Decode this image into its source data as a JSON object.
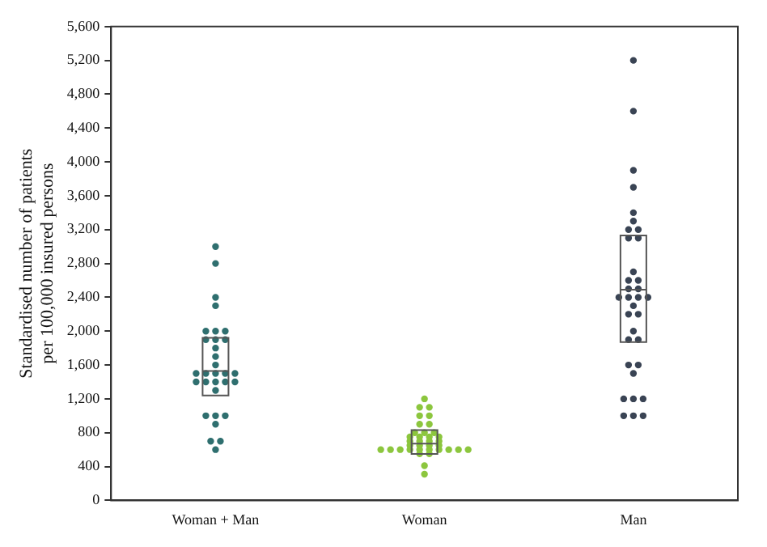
{
  "chart_data": {
    "type": "box",
    "ylabel": "Standardised number of patients per 100,000 insured persons",
    "categories": [
      "Woman + Man",
      "Woman",
      "Man"
    ],
    "color": "#555555",
    "boxes": [
      {
        "low": 1240,
        "q1": 1240,
        "median": 1530,
        "q3": 1920,
        "high": 1920
      },
      {
        "low": 550,
        "q1": 550,
        "median": 670,
        "q3": 830,
        "high": 830
      },
      {
        "low": 1870,
        "q1": 1870,
        "median": 2490,
        "q3": 3130,
        "high": 3130
      }
    ],
    "series": [
      {
        "type": "scatter",
        "color": "#2f6f6f",
        "x": [
          "Woman + Man",
          "Woman + Man",
          "Woman + Man",
          "Woman + Man",
          "Woman + Man",
          "Woman + Man",
          "Woman + Man",
          "Woman + Man",
          "Woman + Man",
          "Woman + Man",
          "Woman + Man",
          "Woman + Man",
          "Woman + Man",
          "Woman + Man",
          "Woman + Man",
          "Woman + Man",
          "Woman + Man",
          "Woman + Man",
          "Woman + Man",
          "Woman + Man",
          "Woman + Man",
          "Woman + Man",
          "Woman + Man",
          "Woman + Man",
          "Woman + Man",
          "Woman + Man",
          "Woman + Man",
          "Woman + Man",
          "Woman + Man",
          "Woman + Man",
          "Woman + Man"
        ],
        "values": [
          3000,
          2800,
          2400,
          2300,
          2000,
          2000,
          2000,
          1900,
          1900,
          1900,
          1800,
          1700,
          1600,
          1500,
          1500,
          1500,
          1500,
          1500,
          1400,
          1400,
          1400,
          1400,
          1400,
          1300,
          1000,
          1000,
          1000,
          900,
          700,
          700,
          600
        ]
      },
      {
        "type": "scatter",
        "color": "#8cc63e",
        "x": [
          "Woman",
          "Woman",
          "Woman",
          "Woman",
          "Woman",
          "Woman",
          "Woman",
          "Woman",
          "Woman",
          "Woman",
          "Woman",
          "Woman",
          "Woman",
          "Woman",
          "Woman",
          "Woman",
          "Woman",
          "Woman",
          "Woman",
          "Woman",
          "Woman",
          "Woman",
          "Woman",
          "Woman",
          "Woman",
          "Woman",
          "Woman",
          "Woman",
          "Woman",
          "Woman",
          "Woman",
          "Woman",
          "Woman",
          "Woman",
          "Woman",
          "Woman"
        ],
        "values": [
          1200,
          1100,
          1100,
          1000,
          1000,
          900,
          900,
          800,
          800,
          800,
          750,
          750,
          750,
          750,
          700,
          700,
          700,
          700,
          650,
          650,
          650,
          650,
          600,
          600,
          600,
          600,
          600,
          600,
          600,
          600,
          600,
          600,
          550,
          550,
          410,
          310
        ]
      },
      {
        "type": "scatter",
        "color": "#3a4454",
        "x": [
          "Man",
          "Man",
          "Man",
          "Man",
          "Man",
          "Man",
          "Man",
          "Man",
          "Man",
          "Man",
          "Man",
          "Man",
          "Man",
          "Man",
          "Man",
          "Man",
          "Man",
          "Man",
          "Man",
          "Man",
          "Man",
          "Man",
          "Man",
          "Man",
          "Man",
          "Man",
          "Man",
          "Man",
          "Man",
          "Man",
          "Man",
          "Man",
          "Man",
          "Man"
        ],
        "values": [
          5200,
          4600,
          3900,
          3700,
          3400,
          3300,
          3200,
          3200,
          3100,
          3100,
          2700,
          2600,
          2600,
          2500,
          2500,
          2400,
          2400,
          2400,
          2400,
          2300,
          2200,
          2200,
          2000,
          1900,
          1900,
          1600,
          1600,
          1500,
          1200,
          1200,
          1200,
          1000,
          1000,
          1000
        ]
      }
    ],
    "ylim": [
      0,
      5600
    ],
    "yticks": [
      0,
      400,
      800,
      {
        "value": 1200,
        "label": "1,200"
      },
      {
        "value": 1600,
        "label": "1,600"
      },
      {
        "value": 2000,
        "label": "2,000"
      },
      {
        "value": 2400,
        "label": "2,400"
      },
      {
        "value": 2800,
        "label": "2,800"
      },
      {
        "value": 3200,
        "label": "3,200"
      },
      {
        "value": 3600,
        "label": "3,600"
      },
      {
        "value": 4000,
        "label": "4,000"
      },
      {
        "value": 4400,
        "label": "4,400"
      },
      {
        "value": 4800,
        "label": "4,800"
      },
      {
        "value": 5200,
        "label": "5,200"
      },
      {
        "value": 5600,
        "label": "5,600"
      }
    ],
    "grid": false,
    "legend": false,
    "marker": "circle"
  }
}
